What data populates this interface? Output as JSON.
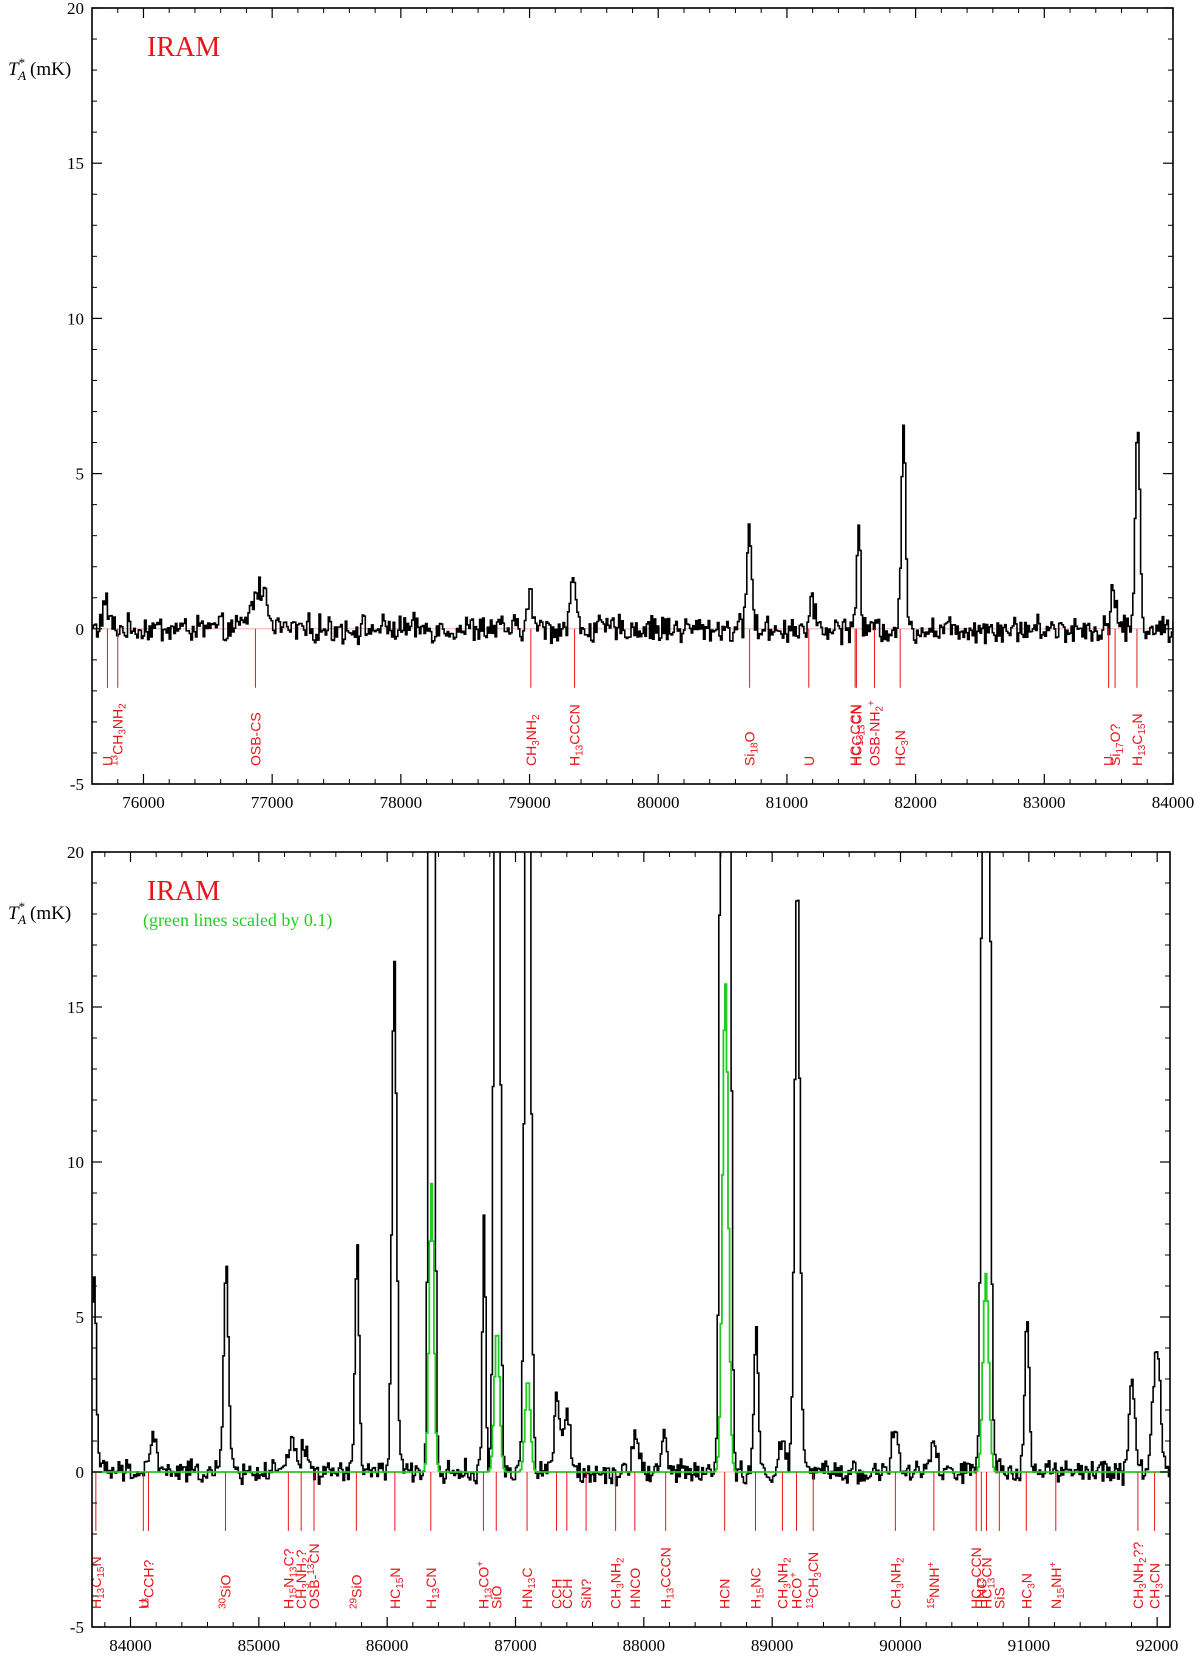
{
  "chart_data": [
    {
      "type": "line",
      "tag": "IRAM",
      "note": "",
      "ylabel": "T*A (mK)",
      "ylabel_main": "T",
      "ylabel_sub": "A",
      "ylabel_sup": "*",
      "ylabel_unit": "(mK)",
      "xlim": [
        75600,
        84000
      ],
      "ylim": [
        -5,
        20
      ],
      "xticks": [
        "76000",
        "77000",
        "78000",
        "79000",
        "80000",
        "81000",
        "82000",
        "83000",
        "84000"
      ],
      "yticks": [
        "-5",
        "0",
        "5",
        "10",
        "15",
        "20"
      ],
      "series": [
        {
          "color": "#000000",
          "noise_amp": 0.35,
          "peaks": [
            [
              75700,
              0.8,
              25
            ],
            [
              76900,
              1.3,
              60
            ],
            [
              79000,
              1.0,
              22
            ],
            [
              79330,
              1.6,
              22
            ],
            [
              80700,
              3.4,
              18
            ],
            [
              81200,
              0.8,
              22
            ],
            [
              81550,
              3.2,
              15
            ],
            [
              81900,
              6.6,
              16
            ],
            [
              83530,
              1.4,
              20
            ],
            [
              83720,
              6.4,
              18
            ]
          ]
        }
      ],
      "lines": [
        {
          "x": 75720,
          "label": "U"
        },
        {
          "x": 75800,
          "label": "13CH3NH2"
        },
        {
          "x": 76870,
          "label": "OSB-CS"
        },
        {
          "x": 79010,
          "label": "CH3NH2"
        },
        {
          "x": 79350,
          "label": "H13CCCN"
        },
        {
          "x": 80710,
          "label": "Si18O"
        },
        {
          "x": 81170,
          "label": "U"
        },
        {
          "x": 81530,
          "label": "HC13CCN"
        },
        {
          "x": 81540,
          "label": "HCC13CN"
        },
        {
          "x": 81680,
          "label": "OSB-NH2+"
        },
        {
          "x": 81880,
          "label": "HC3N"
        },
        {
          "x": 83500,
          "label": "U"
        },
        {
          "x": 83550,
          "label": "Si17O?"
        },
        {
          "x": 83720,
          "label": "H13C15N"
        }
      ]
    },
    {
      "type": "line",
      "tag": "IRAM",
      "note": "(green lines scaled by 0.1)",
      "ylabel": "T*A (mK)",
      "ylabel_main": "T",
      "ylabel_sub": "A",
      "ylabel_sup": "*",
      "ylabel_unit": "(mK)",
      "xlim": [
        83700,
        92100
      ],
      "ylim": [
        -5,
        20
      ],
      "xticks": [
        "84000",
        "85000",
        "86000",
        "87000",
        "88000",
        "89000",
        "90000",
        "91000",
        "92000"
      ],
      "yticks": [
        "-5",
        "0",
        "5",
        "10",
        "15",
        "20"
      ],
      "series": [
        {
          "color": "#000000",
          "noise_amp": 0.3,
          "peaks": [
            [
              83710,
              6.4,
              18
            ],
            [
              84170,
              1.2,
              25
            ],
            [
              84740,
              7.0,
              18
            ],
            [
              85250,
              1.0,
              25
            ],
            [
              85350,
              0.8,
              25
            ],
            [
              85760,
              7.3,
              16
            ],
            [
              86050,
              16.5,
              18
            ],
            [
              86340,
              60,
              17
            ],
            [
              86750,
              8.2,
              12
            ],
            [
              86850,
              50,
              18
            ],
            [
              87090,
              35,
              20
            ],
            [
              87320,
              2.5,
              22
            ],
            [
              87400,
              2.0,
              22
            ],
            [
              87930,
              1.4,
              25
            ],
            [
              88150,
              1.2,
              22
            ],
            [
              88630,
              160,
              22
            ],
            [
              88870,
              4.8,
              15
            ],
            [
              89070,
              1.0,
              25
            ],
            [
              89190,
              19.3,
              20
            ],
            [
              89950,
              1.3,
              25
            ],
            [
              90250,
              0.9,
              22
            ],
            [
              90660,
              65,
              22
            ],
            [
              90980,
              5.2,
              18
            ],
            [
              91800,
              3.0,
              22
            ],
            [
              91990,
              4.2,
              28
            ]
          ]
        },
        {
          "color": "#22cc22",
          "noise_amp": 0,
          "peaks": [
            [
              86340,
              9.3,
              18
            ],
            [
              86850,
              4.6,
              20
            ],
            [
              87090,
              3.0,
              20
            ],
            [
              88630,
              15.8,
              22
            ],
            [
              90660,
              6.4,
              22
            ]
          ]
        }
      ],
      "lines": [
        {
          "x": 83730,
          "label": "H13C15N"
        },
        {
          "x": 84100,
          "label": "U"
        },
        {
          "x": 84140,
          "label": "13CCH?"
        },
        {
          "x": 84740,
          "label": "30SiO"
        },
        {
          "x": 85230,
          "label": "H15N13C?"
        },
        {
          "x": 85330,
          "label": "CH3NH2?"
        },
        {
          "x": 85430,
          "label": "OSB-13CN"
        },
        {
          "x": 85760,
          "label": "29SiO"
        },
        {
          "x": 86060,
          "label": "HC15N"
        },
        {
          "x": 86340,
          "label": "H13CN"
        },
        {
          "x": 86750,
          "label": "H13CO+"
        },
        {
          "x": 86850,
          "label": "SiO"
        },
        {
          "x": 87090,
          "label": "HN13C"
        },
        {
          "x": 87320,
          "label": "CCH"
        },
        {
          "x": 87400,
          "label": "CCH"
        },
        {
          "x": 87550,
          "label": "SiN?"
        },
        {
          "x": 87780,
          "label": "CH3NH2"
        },
        {
          "x": 87930,
          "label": "HNCO"
        },
        {
          "x": 88170,
          "label": "H13CCCN"
        },
        {
          "x": 88630,
          "label": "HCN"
        },
        {
          "x": 88870,
          "label": "H15NC"
        },
        {
          "x": 89080,
          "label": "CH3NH2"
        },
        {
          "x": 89190,
          "label": "HCO+"
        },
        {
          "x": 89320,
          "label": "13CH3CN"
        },
        {
          "x": 89960,
          "label": "CH3NH2"
        },
        {
          "x": 90260,
          "label": "15NNH+"
        },
        {
          "x": 90590,
          "label": "HC13CCN"
        },
        {
          "x": 90630,
          "label": "HNC"
        },
        {
          "x": 90670,
          "label": "HC13CN"
        },
        {
          "x": 90770,
          "label": "SiS"
        },
        {
          "x": 90980,
          "label": "HC3N"
        },
        {
          "x": 91210,
          "label": "N15NH+"
        },
        {
          "x": 91850,
          "label": "CH3NH2??"
        },
        {
          "x": 91980,
          "label": "CH3CN"
        }
      ]
    }
  ]
}
